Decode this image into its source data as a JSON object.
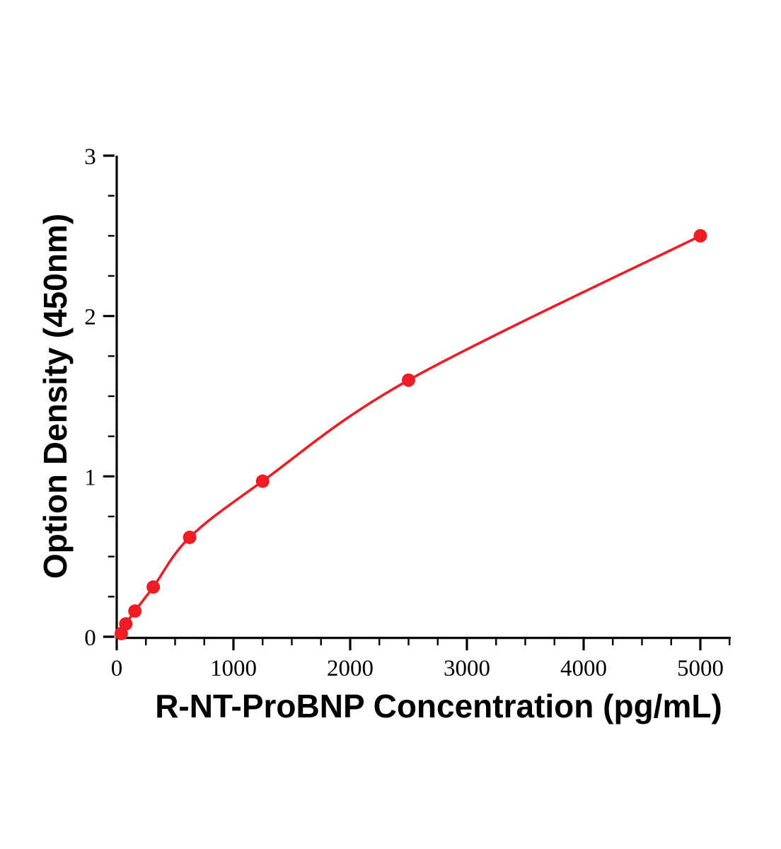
{
  "chart_data": {
    "type": "line",
    "title": "",
    "xlabel": "R-NT-ProBNP Concentration (pg/mL)",
    "ylabel": "Option Density (450nm)",
    "x": [
      39,
      78,
      156,
      313,
      625,
      1250,
      2500,
      5000
    ],
    "y": [
      0.02,
      0.08,
      0.16,
      0.31,
      0.62,
      0.97,
      1.6,
      2.5
    ],
    "xlim": [
      0,
      5000
    ],
    "ylim": [
      0,
      3
    ],
    "x_major_ticks": [
      0,
      1000,
      2000,
      3000,
      4000,
      5000
    ],
    "y_major_ticks": [
      0,
      1,
      2,
      3
    ],
    "x_minor_step": 250,
    "y_minor_step": 0.25,
    "x_axis_extra_minor": 5250,
    "grid": false,
    "legend_position": "none",
    "line_color": "#ee1c25",
    "marker_color": "#ee1c25",
    "axis_color": "#000000",
    "marker_radius": 9.5
  }
}
